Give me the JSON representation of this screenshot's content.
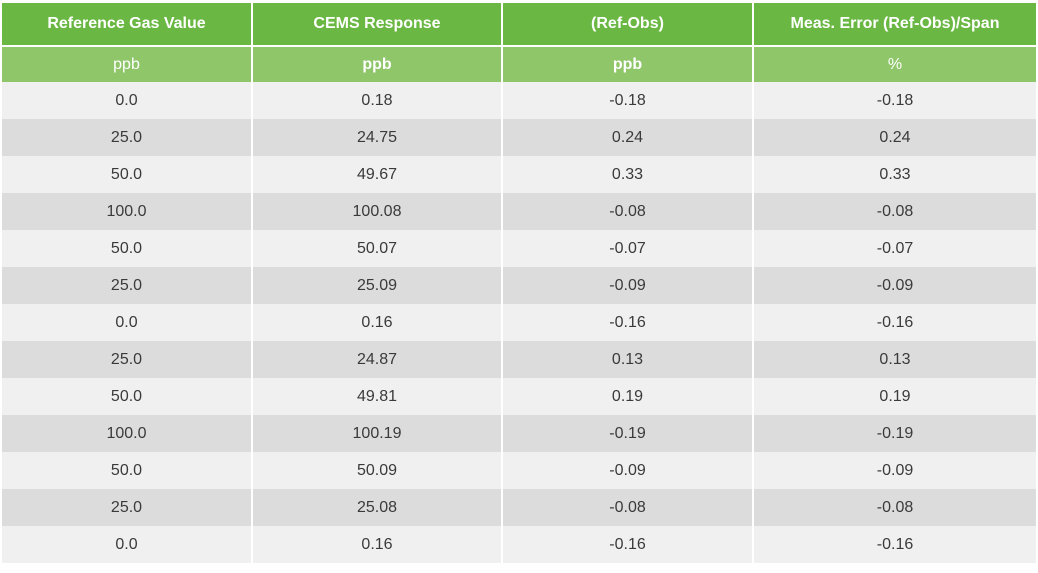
{
  "table": {
    "headers": [
      "Reference Gas Value",
      "CEMS Response",
      "(Ref-Obs)",
      "Meas. Error (Ref-Obs)/Span"
    ],
    "units": [
      "ppb",
      "ppb",
      "ppb",
      "%"
    ],
    "rows": [
      [
        "0.0",
        "0.18",
        "-0.18",
        "-0.18"
      ],
      [
        "25.0",
        "24.75",
        "0.24",
        "0.24"
      ],
      [
        "50.0",
        "49.67",
        "0.33",
        "0.33"
      ],
      [
        "100.0",
        "100.08",
        "-0.08",
        "-0.08"
      ],
      [
        "50.0",
        "50.07",
        "-0.07",
        "-0.07"
      ],
      [
        "25.0",
        "25.09",
        "-0.09",
        "-0.09"
      ],
      [
        "0.0",
        "0.16",
        "-0.16",
        "-0.16"
      ],
      [
        "25.0",
        "24.87",
        "0.13",
        "0.13"
      ],
      [
        "50.0",
        "49.81",
        "0.19",
        "0.19"
      ],
      [
        "100.0",
        "100.19",
        "-0.19",
        "-0.19"
      ],
      [
        "50.0",
        "50.09",
        "-0.09",
        "-0.09"
      ],
      [
        "25.0",
        "25.08",
        "-0.08",
        "-0.08"
      ],
      [
        "0.0",
        "0.16",
        "-0.16",
        "-0.16"
      ]
    ]
  },
  "colors": {
    "header_green": "#6ab843",
    "unit_green": "#8fc66a",
    "row_light": "#f0f0f0",
    "row_dark": "#dcdcdd",
    "text": "#3a3a3a"
  }
}
